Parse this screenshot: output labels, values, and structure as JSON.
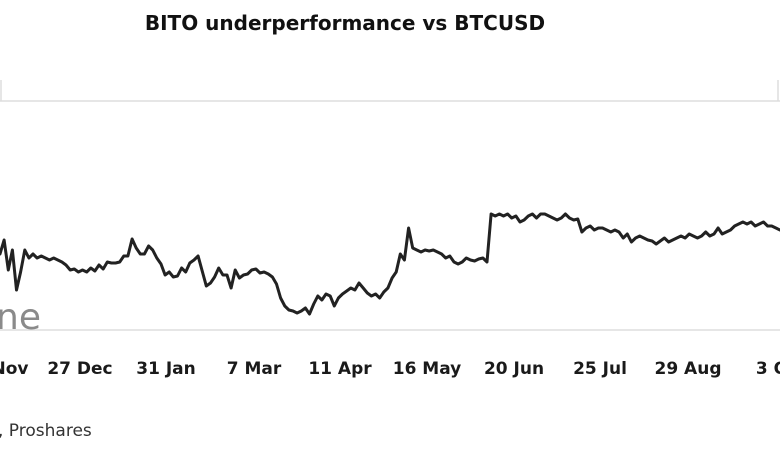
{
  "chart_data": {
    "type": "line",
    "title": "BITO underperformance vs BTCUSD",
    "x_ticks": [
      "Nov",
      "27 Dec",
      "31 Jan",
      "7 Mar",
      "11 Apr",
      "16 May",
      "20 Jun",
      "25 Jul",
      "29 Aug",
      "3 O"
    ],
    "watermark_text": "ne",
    "source_text": ", Proshares",
    "line_color": "#222222",
    "grid": true,
    "series": [
      {
        "values": [
          64,
          78,
          48,
          68,
          28,
          46,
          68,
          60,
          64,
          60,
          62,
          60,
          58,
          60,
          58,
          56,
          53,
          48,
          49,
          46,
          48,
          46,
          50,
          47,
          53,
          49,
          56,
          55,
          55,
          56,
          62,
          62,
          79,
          70,
          64,
          64,
          72,
          68,
          60,
          54,
          43,
          46,
          41,
          42,
          50,
          46,
          55,
          58,
          62,
          47,
          32,
          35,
          41,
          50,
          43,
          43,
          30,
          48,
          40,
          43,
          44,
          48,
          49,
          45,
          46,
          44,
          41,
          34,
          20,
          12,
          8,
          7,
          5,
          7,
          10,
          4,
          14,
          22,
          18,
          24,
          22,
          12,
          20,
          24,
          27,
          30,
          28,
          35,
          30,
          25,
          22,
          24,
          20,
          26,
          30,
          40,
          46,
          64,
          58,
          90,
          70,
          68,
          66,
          68,
          67,
          68,
          66,
          64,
          60,
          62,
          56,
          54,
          56,
          60,
          58,
          57,
          59,
          60,
          56,
          104,
          102,
          104,
          102,
          104,
          100,
          102,
          96,
          98,
          102,
          104,
          100,
          104,
          104,
          102,
          100,
          98,
          100,
          104,
          100,
          98,
          99,
          86,
          90,
          92,
          88,
          90,
          90,
          88,
          86,
          88,
          86,
          80,
          84,
          76,
          80,
          82,
          80,
          78,
          77,
          74,
          77,
          80,
          76,
          78,
          80,
          82,
          80,
          84,
          82,
          80,
          82,
          86,
          82,
          84,
          90,
          84,
          86,
          88,
          92,
          94,
          96,
          94,
          96,
          92,
          94,
          96,
          92,
          92,
          90,
          88
        ]
      }
    ]
  }
}
